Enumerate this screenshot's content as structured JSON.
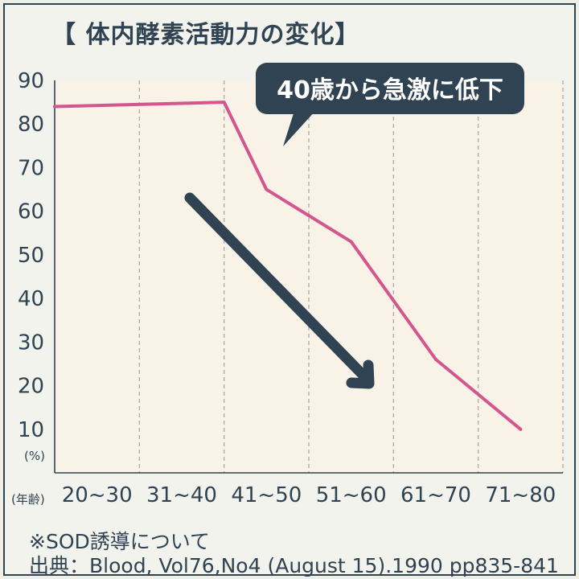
{
  "title": "【 体内酵素活動力の変化】",
  "y_unit": "(%)",
  "x_unit": "(年齢)",
  "callout": "40歳から急激に低下",
  "notes": {
    "line1": "※SOD誘導について",
    "line2": "出典：Blood, Vol76,No4 (August 15).1990 pp835-841"
  },
  "colors": {
    "line": "#d4568e",
    "navy": "#2f4352",
    "plot_bg": "#f8f3e6"
  },
  "chart_data": {
    "type": "line",
    "title": "【 体内酵素活動力の変化】",
    "ylabel": "(%)",
    "xlabel": "(年齢)",
    "categories": [
      "20~30",
      "31~40",
      "41~50",
      "51~60",
      "61~70",
      "71~80"
    ],
    "x": [
      20,
      40,
      45,
      55,
      65,
      75
    ],
    "y": [
      84,
      85,
      65,
      53,
      26,
      10
    ],
    "yticks": [
      10,
      20,
      30,
      40,
      50,
      60,
      70,
      80,
      90
    ],
    "ylim": [
      0,
      90
    ],
    "grid": "vertical-dashed",
    "annotation": "40歳から急激に低下"
  }
}
